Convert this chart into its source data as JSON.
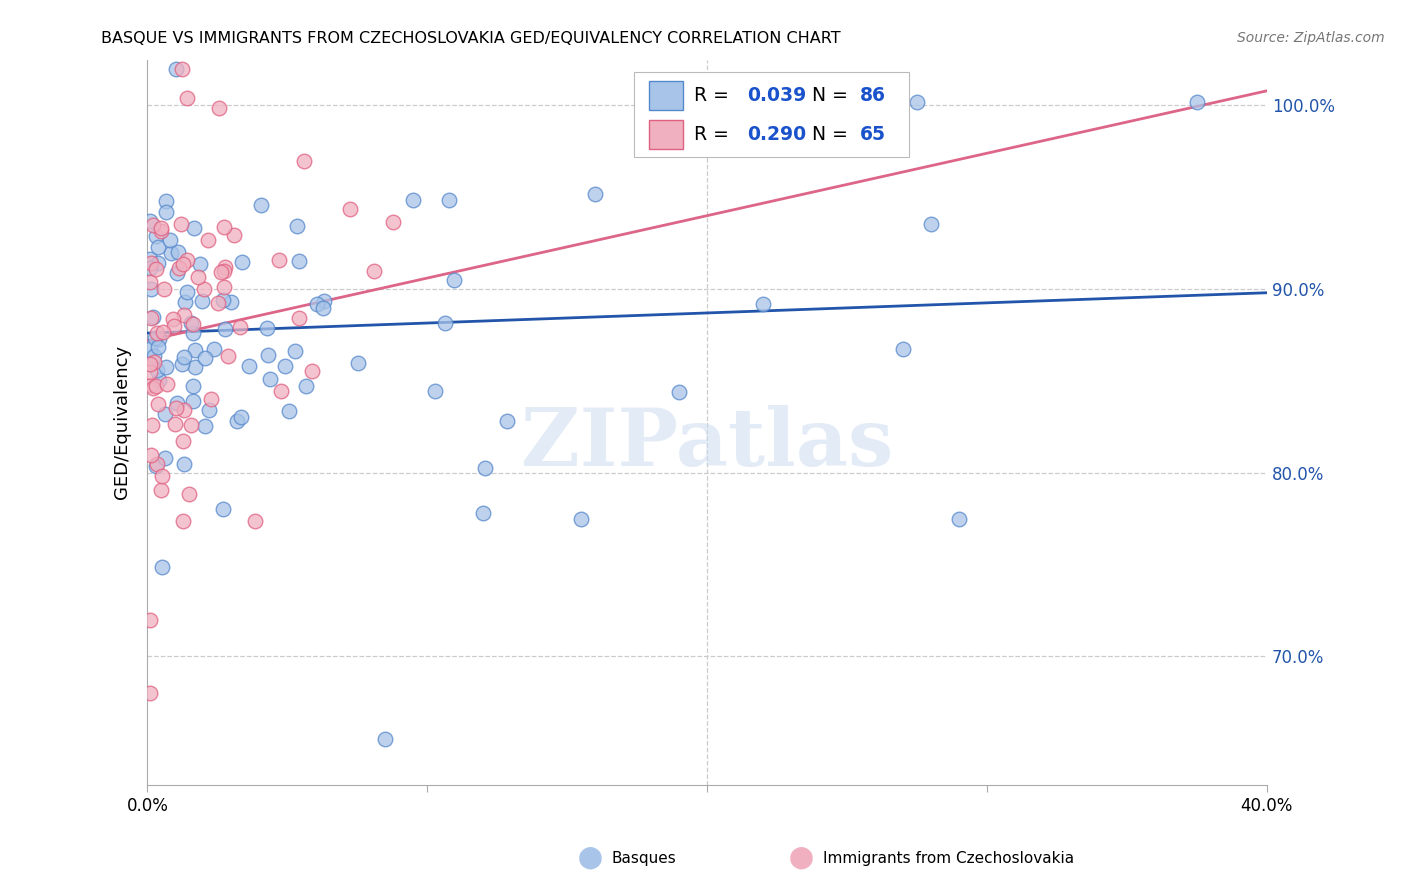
{
  "title": "BASQUE VS IMMIGRANTS FROM CZECHOSLOVAKIA GED/EQUIVALENCY CORRELATION CHART",
  "source": "Source: ZipAtlas.com",
  "ylabel": "GED/Equivalency",
  "xlim": [
    0.0,
    0.4
  ],
  "ylim": [
    0.63,
    1.025
  ],
  "yticks": [
    0.7,
    0.8,
    0.9,
    1.0
  ],
  "ytick_labels": [
    "70.0%",
    "80.0%",
    "90.0%",
    "100.0%"
  ],
  "xtick_vals": [
    0.0,
    0.1,
    0.2,
    0.3,
    0.4
  ],
  "xtick_labels": [
    "0.0%",
    "",
    "",
    "",
    "40.0%"
  ],
  "blue_R": "0.039",
  "blue_N": "86",
  "pink_R": "0.290",
  "pink_N": "65",
  "blue_fill_color": "#a8c4e8",
  "blue_edge_color": "#5588cc",
  "pink_fill_color": "#f0b0c0",
  "pink_edge_color": "#e06080",
  "blue_line_color": "#2255aa",
  "pink_line_color": "#dd6688",
  "legend_value_color": "#1a52cc",
  "grid_color": "#cccccc",
  "ytick_color": "#2255aa",
  "blue_line_y0": 0.876,
  "blue_line_y1": 0.898,
  "pink_line_y0": 0.872,
  "pink_line_y1": 1.008
}
